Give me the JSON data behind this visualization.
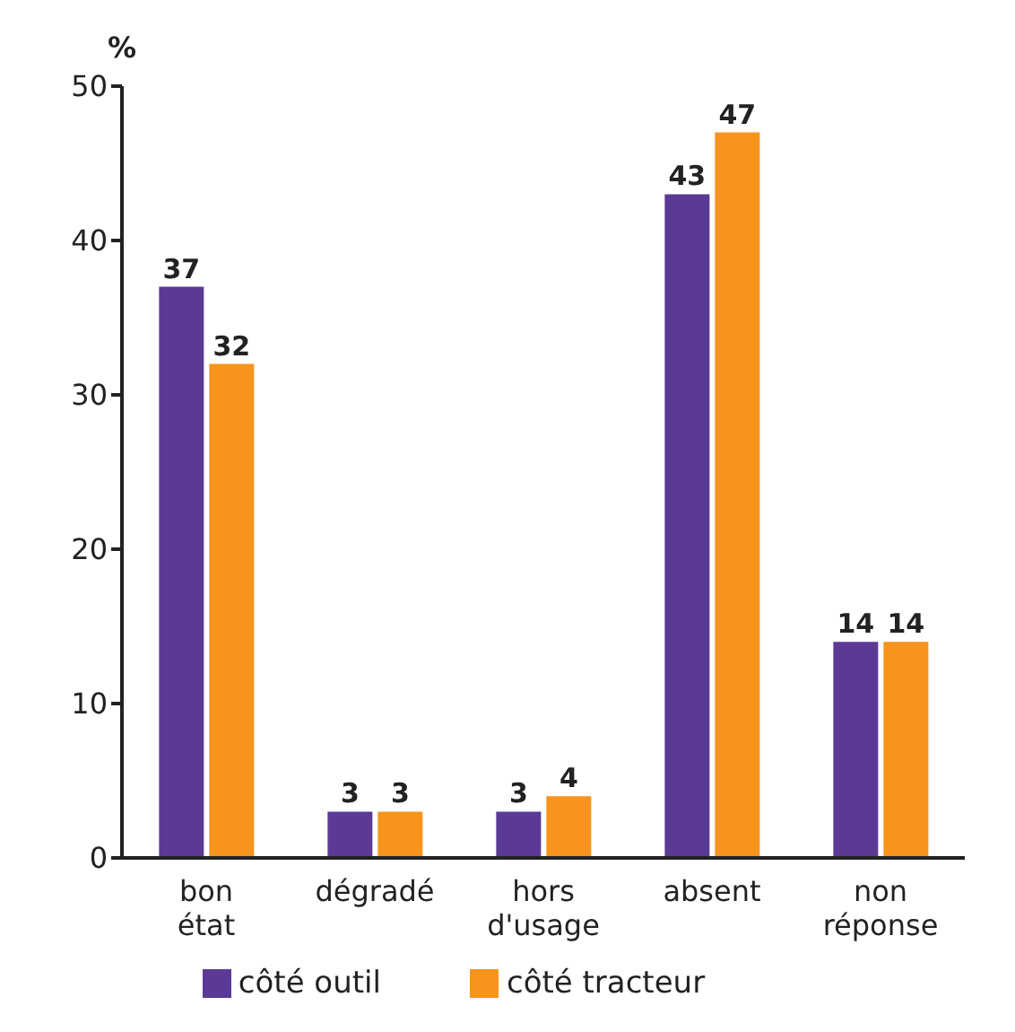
{
  "chart_data": {
    "type": "bar",
    "ylabel": "%",
    "categories": [
      "bon état",
      "dégradé",
      "hors d'usage",
      "absent",
      "non réponse"
    ],
    "series": [
      {
        "name": "côté outil",
        "color": "#5b3a96",
        "values": [
          37,
          3,
          3,
          43,
          14
        ]
      },
      {
        "name": "côté tracteur",
        "color": "#f7941d",
        "values": [
          32,
          3,
          4,
          47,
          14
        ]
      }
    ],
    "ylim": [
      0,
      50
    ],
    "yticks": [
      0,
      10,
      20,
      30,
      40,
      50
    ],
    "data_labels": true,
    "legend": "bottom"
  }
}
